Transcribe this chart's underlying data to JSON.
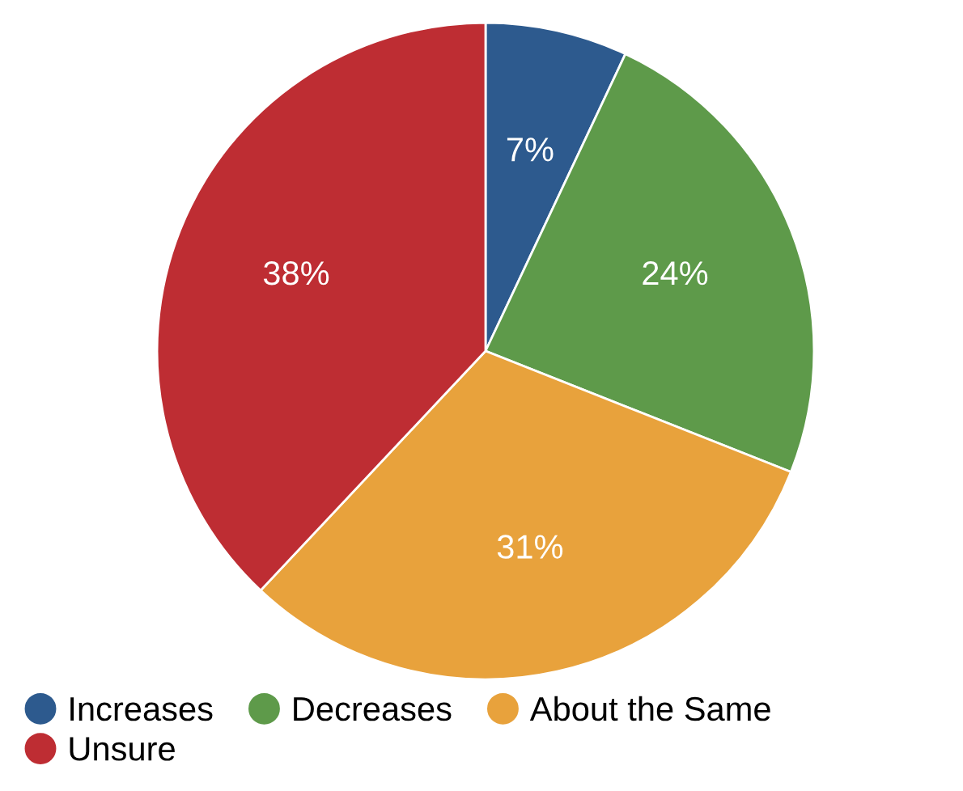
{
  "chart_data": {
    "type": "pie",
    "categories": [
      "Increases",
      "Decreases",
      "About the Same",
      "Unsure"
    ],
    "values": [
      7,
      24,
      31,
      38
    ],
    "colors": [
      "#2d5a8e",
      "#5e9a4a",
      "#e8a23c",
      "#be2d33"
    ],
    "value_labels": [
      "7%",
      "24%",
      "31%",
      "38%"
    ],
    "legend": "bottom"
  }
}
